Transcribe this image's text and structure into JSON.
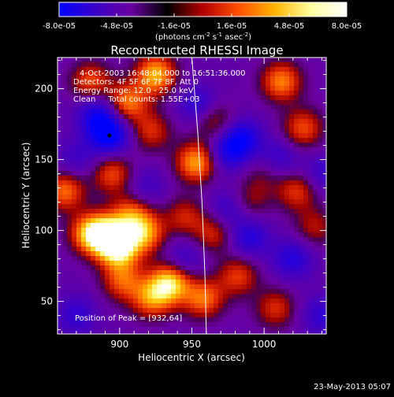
{
  "chart_data": {
    "type": "heatmap",
    "title": "Reconstructed RHESSI Image",
    "xlabel": "Heliocentric X (arcsec)",
    "ylabel": "Heliocentric Y (arcsec)",
    "xlim": [
      857,
      1043
    ],
    "ylim": [
      27,
      222
    ],
    "x_ticks": [
      900,
      950,
      1000
    ],
    "y_ticks": [
      50,
      100,
      150,
      200
    ],
    "x_tick_labels": [
      "900",
      "950",
      "1000"
    ],
    "y_tick_labels": [
      "50",
      "100",
      "150",
      "200"
    ],
    "colorbar": {
      "range": [
        -8e-05,
        8e-05
      ],
      "ticks": [
        -8e-05,
        -4.8e-05,
        -1.6e-05,
        1.6e-05,
        4.8e-05,
        8e-05
      ],
      "tick_labels": [
        "-8.0e-05",
        "-4.8e-05",
        "-1.6e-05",
        "1.6e-05",
        "4.8e-05",
        "8.0e-05"
      ],
      "units_main": "(photons cm",
      "units_exp1": "-2",
      "units_mid": " s",
      "units_exp2": "-1",
      "units_mid2": " asec",
      "units_exp3": "-2",
      "units_end": ")",
      "colors": [
        "#0000ff",
        "#3a00c8",
        "#6a00a0",
        "#000000",
        "#b40000",
        "#ff5000",
        "#ffb400",
        "#ffffa0",
        "#ffffff"
      ]
    },
    "info_lines": [
      "4-Oct-2003 16:48:04.000 to 16:51:36.000",
      "Detectors: 4F 5F 6F 7F 8F, Att 0",
      "Energy Range: 12.0 - 25.0 keV",
      "Clean     Total counts: 1.55E+03"
    ],
    "peak_label": "Position of Peak = [932,64]",
    "peak_position": [
      932,
      64
    ],
    "limb_curve": [
      [
        950,
        222
      ],
      [
        954,
        170
      ],
      [
        957,
        120
      ],
      [
        959,
        70
      ],
      [
        960,
        27
      ]
    ],
    "blobs": [
      {
        "x": 880,
        "y": 98,
        "v": 0.9
      },
      {
        "x": 893,
        "y": 96,
        "v": 1.0
      },
      {
        "x": 900,
        "y": 86,
        "v": 0.85
      },
      {
        "x": 917,
        "y": 98,
        "v": 0.8
      },
      {
        "x": 908,
        "y": 112,
        "v": 0.6
      },
      {
        "x": 862,
        "y": 128,
        "v": 0.7
      },
      {
        "x": 895,
        "y": 140,
        "v": 0.6
      },
      {
        "x": 880,
        "y": 205,
        "v": 0.6
      },
      {
        "x": 905,
        "y": 190,
        "v": 0.75
      },
      {
        "x": 925,
        "y": 210,
        "v": 0.9
      },
      {
        "x": 922,
        "y": 170,
        "v": 0.5
      },
      {
        "x": 953,
        "y": 148,
        "v": 0.85
      },
      {
        "x": 965,
        "y": 178,
        "v": 0.5
      },
      {
        "x": 1012,
        "y": 205,
        "v": 0.75
      },
      {
        "x": 1027,
        "y": 172,
        "v": 0.6
      },
      {
        "x": 1023,
        "y": 128,
        "v": 0.55
      },
      {
        "x": 1000,
        "y": 140,
        "v": 0.3
      },
      {
        "x": 965,
        "y": 98,
        "v": 0.5
      },
      {
        "x": 945,
        "y": 110,
        "v": 0.45
      },
      {
        "x": 935,
        "y": 63,
        "v": 1.0
      },
      {
        "x": 922,
        "y": 52,
        "v": 0.7
      },
      {
        "x": 902,
        "y": 64,
        "v": 0.6
      },
      {
        "x": 958,
        "y": 52,
        "v": 0.7
      },
      {
        "x": 982,
        "y": 68,
        "v": 0.55
      },
      {
        "x": 1008,
        "y": 45,
        "v": 0.5
      },
      {
        "x": 1035,
        "y": 102,
        "v": 0.4
      },
      {
        "x": 990,
        "y": 120,
        "v": 0.35
      },
      {
        "x": 893,
        "y": 167,
        "v": -0.8
      },
      {
        "x": 885,
        "y": 182,
        "v": -0.6
      },
      {
        "x": 955,
        "y": 188,
        "v": -0.5
      },
      {
        "x": 985,
        "y": 165,
        "v": -0.6
      },
      {
        "x": 975,
        "y": 155,
        "v": -0.5
      },
      {
        "x": 1010,
        "y": 150,
        "v": -0.4
      },
      {
        "x": 975,
        "y": 115,
        "v": -0.4
      },
      {
        "x": 990,
        "y": 95,
        "v": -0.5
      },
      {
        "x": 1020,
        "y": 80,
        "v": -0.5
      },
      {
        "x": 945,
        "y": 80,
        "v": -0.35
      },
      {
        "x": 870,
        "y": 150,
        "v": -0.3
      },
      {
        "x": 870,
        "y": 40,
        "v": -0.4
      },
      {
        "x": 1040,
        "y": 40,
        "v": -0.4
      },
      {
        "x": 1040,
        "y": 140,
        "v": -0.35
      },
      {
        "x": 918,
        "y": 130,
        "v": -0.3
      }
    ]
  },
  "footer": {
    "date_stamp": "23-May-2013 05:07"
  }
}
